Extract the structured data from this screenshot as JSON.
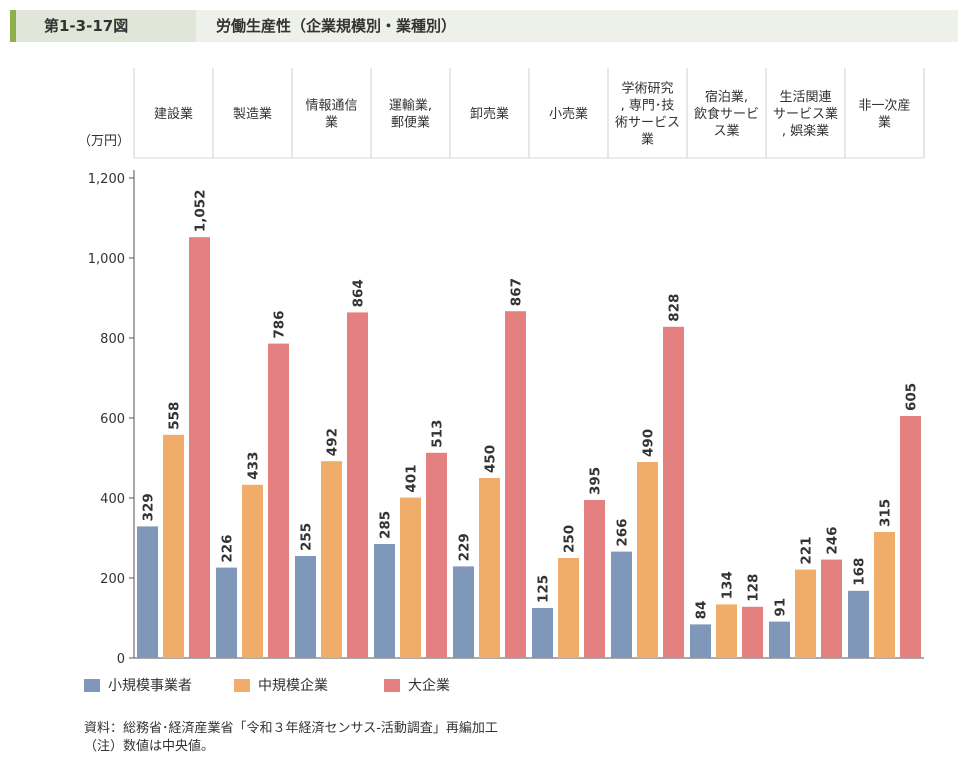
{
  "header": {
    "figure_number": "第1-3-17図",
    "title": "労働生産性（企業規模別・業種別）"
  },
  "chart_data": {
    "type": "bar",
    "title": "労働生産性（企業規模別・業種別）",
    "ylabel": "（万円）",
    "ylim": [
      0,
      1200
    ],
    "yticks": [
      "0",
      "200",
      "400",
      "600",
      "800",
      "1,000",
      "1,200"
    ],
    "ytick_values": [
      0,
      200,
      400,
      600,
      800,
      1000,
      1200
    ],
    "categories": [
      [
        "建設業"
      ],
      [
        "製造業"
      ],
      [
        "情報通信",
        "業"
      ],
      [
        "運輸業,",
        "郵便業"
      ],
      [
        "卸売業"
      ],
      [
        "小売業"
      ],
      [
        "学術研究",
        ", 専門･技",
        "術サービス",
        "業"
      ],
      [
        "宿泊業,",
        "飲食サービ",
        "ス業"
      ],
      [
        "生活関連",
        "サービス業",
        ", 娯楽業"
      ],
      [
        "非一次産",
        "業"
      ]
    ],
    "series": [
      {
        "name": "小規模事業者",
        "color": "#7f97b8",
        "values": [
          329,
          226,
          255,
          285,
          229,
          125,
          266,
          84,
          91,
          168
        ],
        "labels": [
          "329",
          "226",
          "255",
          "285",
          "229",
          "125",
          "266",
          "84",
          "91",
          "168"
        ]
      },
      {
        "name": "中規模企業",
        "color": "#f0ad6a",
        "values": [
          558,
          433,
          492,
          401,
          450,
          250,
          490,
          134,
          221,
          315
        ],
        "labels": [
          "558",
          "433",
          "492",
          "401",
          "450",
          "250",
          "490",
          "134",
          "221",
          "315"
        ]
      },
      {
        "name": "大企業",
        "color": "#e58080",
        "values": [
          1052,
          786,
          864,
          513,
          867,
          395,
          828,
          128,
          246,
          605
        ],
        "labels": [
          "1,052",
          "786",
          "864",
          "513",
          "867",
          "395",
          "828",
          "128",
          "246",
          "605"
        ]
      }
    ],
    "grid": false,
    "legend_position": "bottom-left"
  },
  "source": {
    "line1": "資料：総務省･経済産業省「令和３年経済センサス-活動調査」再編加工",
    "line2": "（注）数値は中央値。"
  }
}
